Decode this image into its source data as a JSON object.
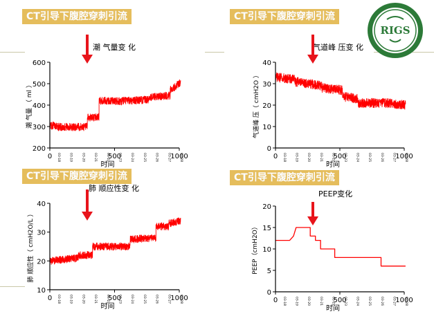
{
  "banner_text": "CT引导下腹腔穿刺引流",
  "colors": {
    "banner_bg": "#e5bd5c",
    "banner_text": "#fbfcff",
    "trace": "#ff0000",
    "arrow": "#e8141b",
    "logo_green": "#2c7a38"
  },
  "logo": {
    "text": "RIGS"
  },
  "date_ticks": [
    "03-18",
    "03-19",
    "03-20",
    "03-21",
    "03-22",
    "03-23",
    "03-24",
    "03-25",
    "03-26",
    "03-27",
    "03-28"
  ],
  "chart_data": [
    {
      "type": "line",
      "annotation": "潮 气量变 化",
      "ylabel": "潮 气量 （ ml ）",
      "xlabel": "时间",
      "xlim": [
        0,
        1000
      ],
      "x_ticks": [
        0,
        500,
        1000
      ],
      "ylim": [
        200,
        600
      ],
      "y_ticks": [
        200,
        300,
        400,
        500,
        600
      ],
      "noise": 18,
      "segments": [
        {
          "x0": 0,
          "x1": 60,
          "y0": 305,
          "y1": 305
        },
        {
          "x0": 60,
          "x1": 290,
          "y0": 298,
          "y1": 298
        },
        {
          "x0": 290,
          "x1": 380,
          "y0": 340,
          "y1": 345
        },
        {
          "x0": 380,
          "x1": 560,
          "y0": 420,
          "y1": 418
        },
        {
          "x0": 560,
          "x1": 760,
          "y0": 420,
          "y1": 425
        },
        {
          "x0": 760,
          "x1": 930,
          "y0": 435,
          "y1": 445
        },
        {
          "x0": 930,
          "x1": 1010,
          "y0": 470,
          "y1": 505
        }
      ]
    },
    {
      "type": "line",
      "annotation": "气道峰 压变 化",
      "ylabel": "气道峰 压（ cmH2O ）",
      "xlabel": "时间",
      "xlim": [
        0,
        1000
      ],
      "x_ticks": [
        0,
        500,
        1000
      ],
      "ylim": [
        0,
        40
      ],
      "y_ticks": [
        0,
        10,
        20,
        30,
        40
      ],
      "noise": 2.2,
      "segments": [
        {
          "x0": 0,
          "x1": 150,
          "y0": 33,
          "y1": 32
        },
        {
          "x0": 150,
          "x1": 360,
          "y0": 31,
          "y1": 29
        },
        {
          "x0": 360,
          "x1": 520,
          "y0": 28,
          "y1": 27
        },
        {
          "x0": 520,
          "x1": 640,
          "y0": 24,
          "y1": 23
        },
        {
          "x0": 640,
          "x1": 860,
          "y0": 21,
          "y1": 21
        },
        {
          "x0": 860,
          "x1": 1010,
          "y0": 21,
          "y1": 20
        }
      ]
    },
    {
      "type": "line",
      "annotation": "肺 顺应性变 化",
      "ylabel": "肺 顺应性（ cmH2O/L ）",
      "xlabel": "时间",
      "xlim": [
        0,
        1000
      ],
      "x_ticks": [
        0,
        500,
        1000
      ],
      "ylim": [
        10,
        40
      ],
      "y_ticks": [
        10,
        20,
        30,
        40
      ],
      "noise": 1.3,
      "segments": [
        {
          "x0": 0,
          "x1": 220,
          "y0": 20,
          "y1": 21
        },
        {
          "x0": 220,
          "x1": 330,
          "y0": 22,
          "y1": 22
        },
        {
          "x0": 330,
          "x1": 620,
          "y0": 25,
          "y1": 25
        },
        {
          "x0": 620,
          "x1": 820,
          "y0": 27.5,
          "y1": 28
        },
        {
          "x0": 820,
          "x1": 920,
          "y0": 32,
          "y1": 32
        },
        {
          "x0": 920,
          "x1": 1010,
          "y0": 33,
          "y1": 34
        }
      ]
    },
    {
      "type": "line",
      "annotation": "PEEP变化",
      "ylabel": "PEEP（cmH2O）",
      "xlabel": "时间",
      "xlim": [
        0,
        1000
      ],
      "x_ticks": [
        0,
        500,
        1000
      ],
      "ylim": [
        0,
        20
      ],
      "y_ticks": [
        0,
        5,
        10,
        15,
        20
      ],
      "points": [
        [
          0,
          12
        ],
        [
          110,
          12
        ],
        [
          140,
          13
        ],
        [
          160,
          15
        ],
        [
          270,
          15
        ],
        [
          270,
          13
        ],
        [
          310,
          13
        ],
        [
          310,
          12
        ],
        [
          350,
          12
        ],
        [
          350,
          10
        ],
        [
          460,
          10
        ],
        [
          460,
          8
        ],
        [
          820,
          8
        ],
        [
          820,
          6
        ],
        [
          1010,
          6
        ]
      ]
    }
  ]
}
